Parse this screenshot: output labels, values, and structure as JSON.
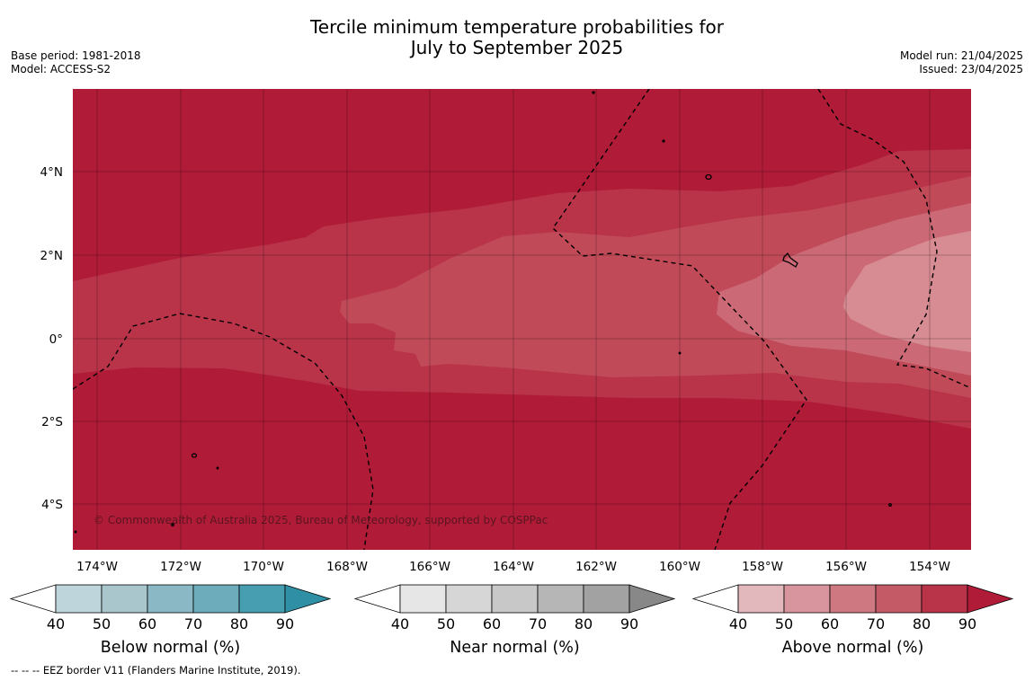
{
  "header": {
    "title_line1": "Tercile minimum temperature probabilities for",
    "title_line2": "July to September 2025",
    "base_period": "Base period: 1981-2018",
    "model": "Model: ACCESS-S2",
    "model_run": "Model run: 21/04/2025",
    "issued": "Issued: 23/04/2025"
  },
  "map": {
    "lat_ticks": [
      "4°N",
      "2°N",
      "0°",
      "2°S",
      "4°S"
    ],
    "lon_ticks": [
      "174°W",
      "172°W",
      "170°W",
      "168°W",
      "166°W",
      "164°W",
      "162°W",
      "160°W",
      "158°W",
      "156°W",
      "154°W"
    ],
    "copyright": "© Commonwealth of Australia 2025, Bureau of Meteorology, supported by COSPPac"
  },
  "colorbars": [
    {
      "label": "Below normal (%)",
      "ticks": [
        "40",
        "50",
        "60",
        "70",
        "80",
        "90"
      ],
      "colors": [
        "#bfd5dc",
        "#a8c6cc",
        "#8bb8c5",
        "#6cacbb",
        "#479eb0",
        "#2f8fa5"
      ]
    },
    {
      "label": "Near normal (%)",
      "ticks": [
        "40",
        "50",
        "60",
        "70",
        "80",
        "90"
      ],
      "colors": [
        "#e6e6e6",
        "#d6d6d6",
        "#c8c8c8",
        "#b6b6b6",
        "#a2a2a2",
        "#888888"
      ]
    },
    {
      "label": "Above normal (%)",
      "ticks": [
        "40",
        "50",
        "60",
        "70",
        "80",
        "90"
      ],
      "colors": [
        "#e2b8bd",
        "#d8959e",
        "#ce7882",
        "#c55a67",
        "#b93349",
        "#b01c38"
      ]
    }
  ],
  "footnote": "--  --  -- EEZ border V11 (Flanders Marine Institute, 2019)."
}
